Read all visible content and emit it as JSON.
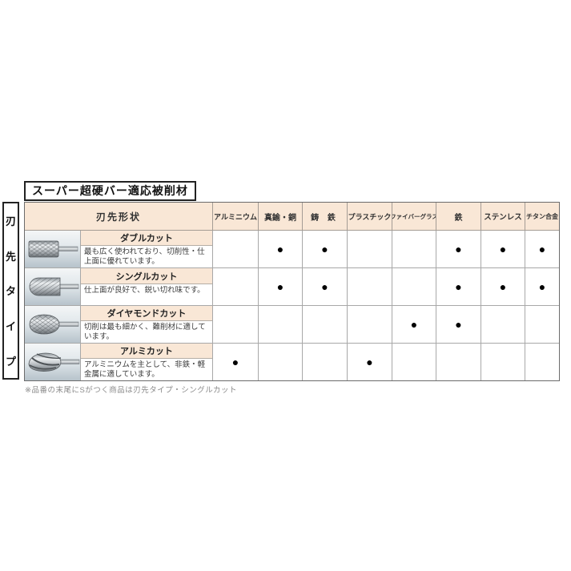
{
  "title": "スーパー超硬バー適応被削材",
  "side_label": "刃先タイプ",
  "table": {
    "shape_header": "刃先形状",
    "material_headers": [
      "アルミニウム",
      "真鍮・銅",
      "鋳 鉄",
      "プラスチック",
      "ファイバーグラス",
      "鉄",
      "ステンレス",
      "チタン合金"
    ],
    "mark_glyph": "●",
    "rows": [
      {
        "name": "ダブルカット",
        "description": "最も広く使われており、切削性・仕上面に優れています。",
        "image": "double-cut-bur",
        "marks": [
          false,
          true,
          true,
          false,
          false,
          true,
          true,
          true
        ]
      },
      {
        "name": "シングルカット",
        "description": "仕上面が良好で、鋭い切れ味です。",
        "image": "single-cut-bur",
        "marks": [
          false,
          true,
          true,
          false,
          false,
          true,
          true,
          true
        ]
      },
      {
        "name": "ダイヤモンドカット",
        "description": "切削は最も細かく、難削材に適しています。",
        "image": "diamond-cut-bur",
        "marks": [
          false,
          false,
          false,
          false,
          true,
          true,
          false,
          false
        ]
      },
      {
        "name": "アルミカット",
        "description": "アルミニウムを主として、非鉄・軽金属に適しています。",
        "image": "aluminum-cut-bur",
        "marks": [
          true,
          false,
          false,
          true,
          false,
          false,
          false,
          false
        ]
      }
    ]
  },
  "footnote": "※品番の末尾にSがつく商品は刃先タイプ・シングルカット",
  "colors": {
    "header_bg": "#f9e7d6",
    "inner_border": "#a8a8a8",
    "outer_border": "#6b6b6b",
    "box_border": "#222222",
    "mark": "#000000",
    "footnote_text": "#8a8a8a"
  }
}
